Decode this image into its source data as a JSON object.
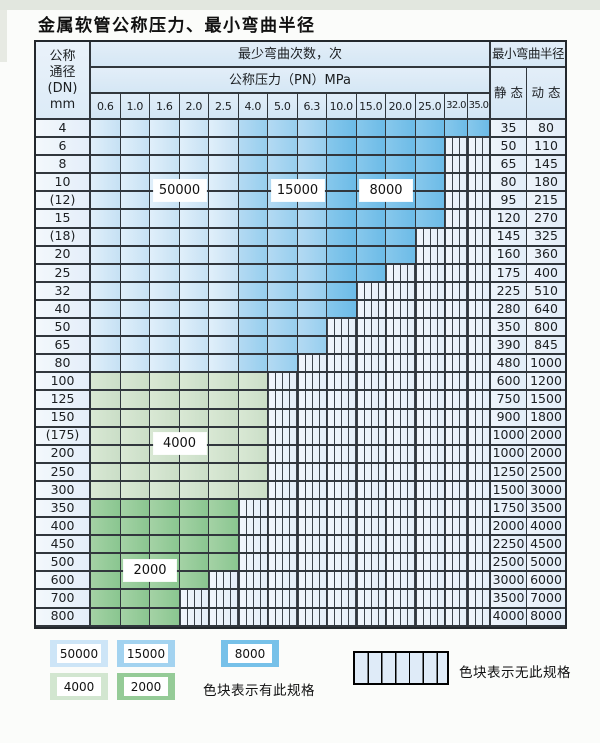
{
  "page_title": "金属软管公称压力、最小弯曲半径",
  "colors": {
    "c50000": "#cde5f7",
    "c15000": "#a3d3f0",
    "c8000": "#77c1e9",
    "c4000": "#d2e6d0",
    "c2000": "#95cb97",
    "striped_bg": "#e9f1f9",
    "grid_line": "#31373d"
  },
  "table": {
    "header": {
      "dn_lines": [
        "公称",
        "通径",
        "(DN)",
        "mm"
      ],
      "bend_cycles_label": "最少弯曲次数，次",
      "pressure_label": "公称压力（PN）MPa",
      "radius_label": "最小弯曲半径",
      "static_label": "静 态",
      "dynamic_label": "动 态",
      "pressure_columns": [
        "0.6",
        "1.0",
        "1.6",
        "2.0",
        "2.5",
        "4.0",
        "5.0",
        "6.3",
        "10.0",
        "15.0",
        "20.0",
        "25.0",
        "32.0",
        "35.0"
      ]
    },
    "blue_region_breaks": {
      "r50000_last_col": 5,
      "r15000_last_col": 8
    },
    "rows": [
      {
        "dn": "4",
        "region": "blue",
        "colored": 14,
        "static": "35",
        "dynamic": "80"
      },
      {
        "dn": "6",
        "region": "blue",
        "colored": 12,
        "static": "50",
        "dynamic": "110"
      },
      {
        "dn": "8",
        "region": "blue",
        "colored": 12,
        "static": "65",
        "dynamic": "145"
      },
      {
        "dn": "10",
        "region": "blue",
        "colored": 12,
        "static": "80",
        "dynamic": "180"
      },
      {
        "dn": "(12)",
        "region": "blue",
        "colored": 12,
        "static": "95",
        "dynamic": "215"
      },
      {
        "dn": "15",
        "region": "blue",
        "colored": 12,
        "static": "120",
        "dynamic": "270"
      },
      {
        "dn": "(18)",
        "region": "blue",
        "colored": 11,
        "static": "145",
        "dynamic": "325"
      },
      {
        "dn": "20",
        "region": "blue",
        "colored": 11,
        "static": "160",
        "dynamic": "360"
      },
      {
        "dn": "25",
        "region": "blue",
        "colored": 10,
        "static": "175",
        "dynamic": "400"
      },
      {
        "dn": "32",
        "region": "blue",
        "colored": 9,
        "static": "225",
        "dynamic": "510"
      },
      {
        "dn": "40",
        "region": "blue",
        "colored": 9,
        "static": "280",
        "dynamic": "640"
      },
      {
        "dn": "50",
        "region": "blue",
        "colored": 8,
        "static": "350",
        "dynamic": "800"
      },
      {
        "dn": "65",
        "region": "blue",
        "colored": 8,
        "static": "390",
        "dynamic": "845"
      },
      {
        "dn": "80",
        "region": "blue",
        "colored": 7,
        "static": "480",
        "dynamic": "1000"
      },
      {
        "dn": "100",
        "region": "g4000",
        "colored": 6,
        "static": "600",
        "dynamic": "1200"
      },
      {
        "dn": "125",
        "region": "g4000",
        "colored": 6,
        "static": "750",
        "dynamic": "1500"
      },
      {
        "dn": "150",
        "region": "g4000",
        "colored": 6,
        "static": "900",
        "dynamic": "1800"
      },
      {
        "dn": "(175)",
        "region": "g4000",
        "colored": 6,
        "static": "1000",
        "dynamic": "2000"
      },
      {
        "dn": "200",
        "region": "g4000",
        "colored": 6,
        "static": "1000",
        "dynamic": "2000"
      },
      {
        "dn": "250",
        "region": "g4000",
        "colored": 6,
        "static": "1250",
        "dynamic": "2500"
      },
      {
        "dn": "300",
        "region": "g4000",
        "colored": 6,
        "static": "1500",
        "dynamic": "3000"
      },
      {
        "dn": "350",
        "region": "g2000",
        "colored": 5,
        "static": "1750",
        "dynamic": "3500"
      },
      {
        "dn": "400",
        "region": "g2000",
        "colored": 5,
        "static": "2000",
        "dynamic": "4000"
      },
      {
        "dn": "450",
        "region": "g2000",
        "colored": 5,
        "static": "2250",
        "dynamic": "4500"
      },
      {
        "dn": "500",
        "region": "g2000",
        "colored": 5,
        "static": "2500",
        "dynamic": "5000"
      },
      {
        "dn": "600",
        "region": "g2000",
        "colored": 4,
        "static": "3000",
        "dynamic": "6000"
      },
      {
        "dn": "700",
        "region": "g2000",
        "colored": 3,
        "static": "3500",
        "dynamic": "7000"
      },
      {
        "dn": "800",
        "region": "g2000",
        "colored": 3,
        "static": "4000",
        "dynamic": "8000"
      }
    ],
    "overlays": [
      {
        "label": "50000",
        "boundary_row": 4,
        "cols": [
          2,
          3
        ]
      },
      {
        "label": "15000",
        "boundary_row": 4,
        "cols": [
          6,
          7
        ]
      },
      {
        "label": "8000",
        "boundary_row": 4,
        "cols": [
          9,
          10
        ]
      },
      {
        "label": "4000",
        "boundary_row": 18,
        "cols": [
          2,
          3
        ]
      },
      {
        "label": "2000",
        "boundary_row": 25,
        "cols": [
          1,
          2
        ]
      }
    ]
  },
  "legend": {
    "swatches": [
      {
        "label": "50000",
        "color_key": "c50000",
        "row": 1
      },
      {
        "label": "15000",
        "color_key": "c15000",
        "row": 1
      },
      {
        "label": "8000",
        "color_key": "c8000",
        "row": 1
      },
      {
        "label": "4000",
        "color_key": "c4000",
        "row": 2
      },
      {
        "label": "2000",
        "color_key": "c2000",
        "row": 2
      }
    ],
    "has_spec_text": "色块表示有此规格",
    "no_spec_text": "色块表示无此规格"
  }
}
